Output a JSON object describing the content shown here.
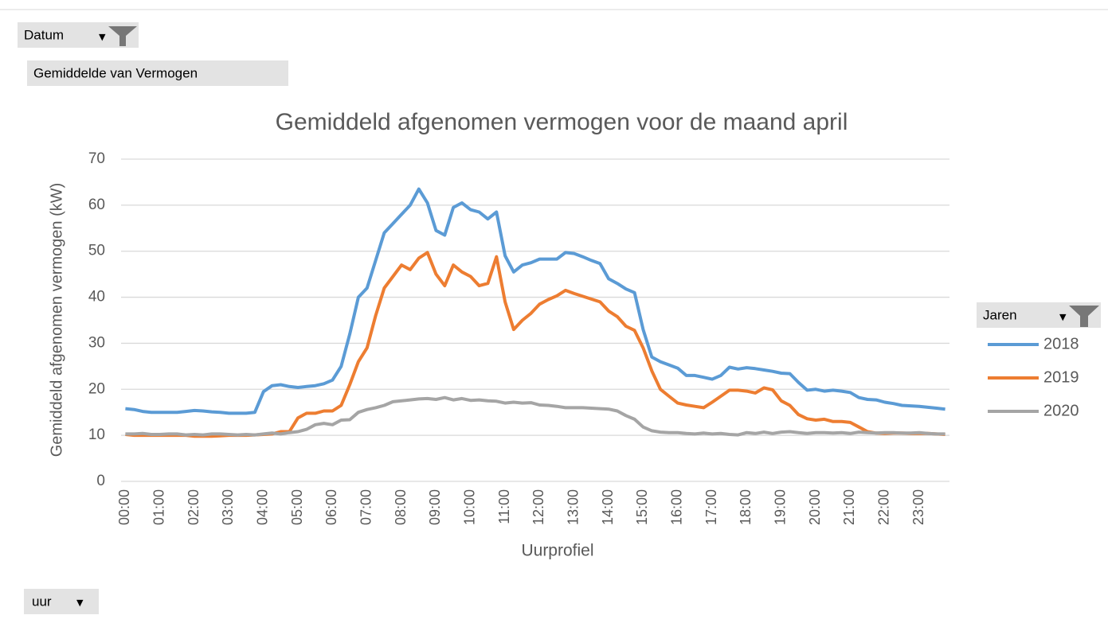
{
  "filters": {
    "datum": "Datum",
    "measure": "Gemiddelde van Vermogen",
    "legend_title": "Jaren",
    "axis_field": "uur"
  },
  "chart_data": {
    "type": "line",
    "title": "Gemiddeld afgenomen vermogen voor de maand april",
    "x_label": "Uurprofiel",
    "y_label": "Gemiddeld afgenomen vermogen (kW)",
    "categories": [
      "00:00",
      null,
      null,
      null,
      "01:00",
      null,
      null,
      null,
      "02:00",
      null,
      null,
      null,
      "03:00",
      null,
      null,
      null,
      "04:00",
      null,
      null,
      null,
      "05:00",
      null,
      null,
      null,
      "06:00",
      null,
      null,
      null,
      "07:00",
      null,
      null,
      null,
      "08:00",
      null,
      null,
      null,
      "09:00",
      null,
      null,
      null,
      "10:00",
      null,
      null,
      null,
      "11:00",
      null,
      null,
      null,
      "12:00",
      null,
      null,
      null,
      "13:00",
      null,
      null,
      null,
      "14:00",
      null,
      null,
      null,
      "15:00",
      null,
      null,
      null,
      "16:00",
      null,
      null,
      null,
      "17:00",
      null,
      null,
      null,
      "18:00",
      null,
      null,
      null,
      "19:00",
      null,
      null,
      null,
      "20:00",
      null,
      null,
      null,
      "21:00",
      null,
      null,
      null,
      "22:00",
      null,
      null,
      null,
      "23:00",
      null,
      null,
      null
    ],
    "series": [
      {
        "name": "2018",
        "color": "#5b9bd5",
        "values": [
          15.8,
          15.6,
          15.2,
          15.0,
          15.0,
          15.0,
          15.0,
          15.2,
          15.4,
          15.3,
          15.1,
          15.0,
          14.8,
          14.8,
          14.8,
          15.0,
          19.5,
          20.8,
          21.0,
          20.6,
          20.4,
          20.6,
          20.8,
          21.2,
          22,
          25,
          32,
          40,
          42,
          48,
          54,
          56,
          58,
          60,
          63.5,
          60.5,
          54.5,
          53.5,
          59.5,
          60.5,
          59,
          58.5,
          57,
          58.5,
          49,
          45.5,
          47,
          47.5,
          48.3,
          48.3,
          48.3,
          49.7,
          49.5,
          48.8,
          48,
          47.3,
          44,
          43,
          41.8,
          41,
          33,
          27,
          26,
          25.3,
          24.6,
          23,
          23,
          22.6,
          22.2,
          23,
          24.8,
          24.4,
          24.7,
          24.5,
          24.2,
          23.9,
          23.5,
          23.4,
          21.5,
          19.8,
          20,
          19.6,
          19.8,
          19.6,
          19.3,
          18.2,
          17.8,
          17.7,
          17.2,
          16.9,
          16.5,
          16.4,
          16.3,
          16.1,
          15.9,
          15.7
        ]
      },
      {
        "name": "2019",
        "color": "#ed7d31",
        "values": [
          10.2,
          10,
          10,
          10,
          10,
          10,
          10,
          10,
          9.8,
          9.8,
          9.8,
          9.9,
          10,
          10,
          10,
          10.1,
          10.2,
          10.3,
          10.8,
          10.8,
          13.8,
          14.8,
          14.8,
          15.3,
          15.3,
          16.5,
          21,
          26,
          29,
          36,
          42,
          44.5,
          47,
          46,
          48.5,
          49.7,
          45,
          42.5,
          47,
          45.5,
          44.5,
          42.5,
          43,
          48.8,
          39,
          33,
          35,
          36.5,
          38.5,
          39.5,
          40.3,
          41.5,
          40.8,
          40.2,
          39.6,
          39,
          37,
          35.8,
          33.7,
          32.8,
          29,
          24,
          20,
          18.5,
          17,
          16.6,
          16.3,
          16,
          17.2,
          18.5,
          19.8,
          19.8,
          19.6,
          19.2,
          20.3,
          19.9,
          17.5,
          16.5,
          14.5,
          13.6,
          13.3,
          13.5,
          13,
          13,
          12.8,
          11.8,
          10.8,
          10.5,
          10.4,
          10.5,
          10.5,
          10.4,
          10.4,
          10.4,
          10.3,
          10.2
        ]
      },
      {
        "name": "2020",
        "color": "#a5a5a5",
        "values": [
          10.3,
          10.3,
          10.4,
          10.2,
          10.2,
          10.3,
          10.3,
          10.1,
          10.2,
          10.1,
          10.3,
          10.3,
          10.2,
          10.1,
          10.2,
          10.1,
          10.3,
          10.5,
          10.3,
          10.6,
          10.8,
          11.3,
          12.3,
          12.6,
          12.3,
          13.3,
          13.4,
          15,
          15.6,
          16,
          16.5,
          17.3,
          17.5,
          17.7,
          17.9,
          18,
          17.8,
          18.2,
          17.7,
          18,
          17.6,
          17.7,
          17.5,
          17.4,
          17,
          17.2,
          17,
          17.1,
          16.6,
          16.5,
          16.3,
          16,
          16,
          16,
          15.9,
          15.8,
          15.7,
          15.3,
          14.3,
          13.5,
          11.8,
          11,
          10.7,
          10.6,
          10.6,
          10.4,
          10.3,
          10.5,
          10.3,
          10.4,
          10.2,
          10.1,
          10.6,
          10.4,
          10.7,
          10.4,
          10.7,
          10.8,
          10.6,
          10.4,
          10.6,
          10.6,
          10.5,
          10.6,
          10.4,
          10.7,
          10.6,
          10.5,
          10.6,
          10.6,
          10.5,
          10.5,
          10.6,
          10.4,
          10.3,
          10.3
        ]
      }
    ],
    "ylim": [
      0,
      70
    ],
    "yticks": [
      0,
      10,
      20,
      30,
      40,
      50,
      60,
      70
    ],
    "grid": true,
    "legend": "right"
  }
}
